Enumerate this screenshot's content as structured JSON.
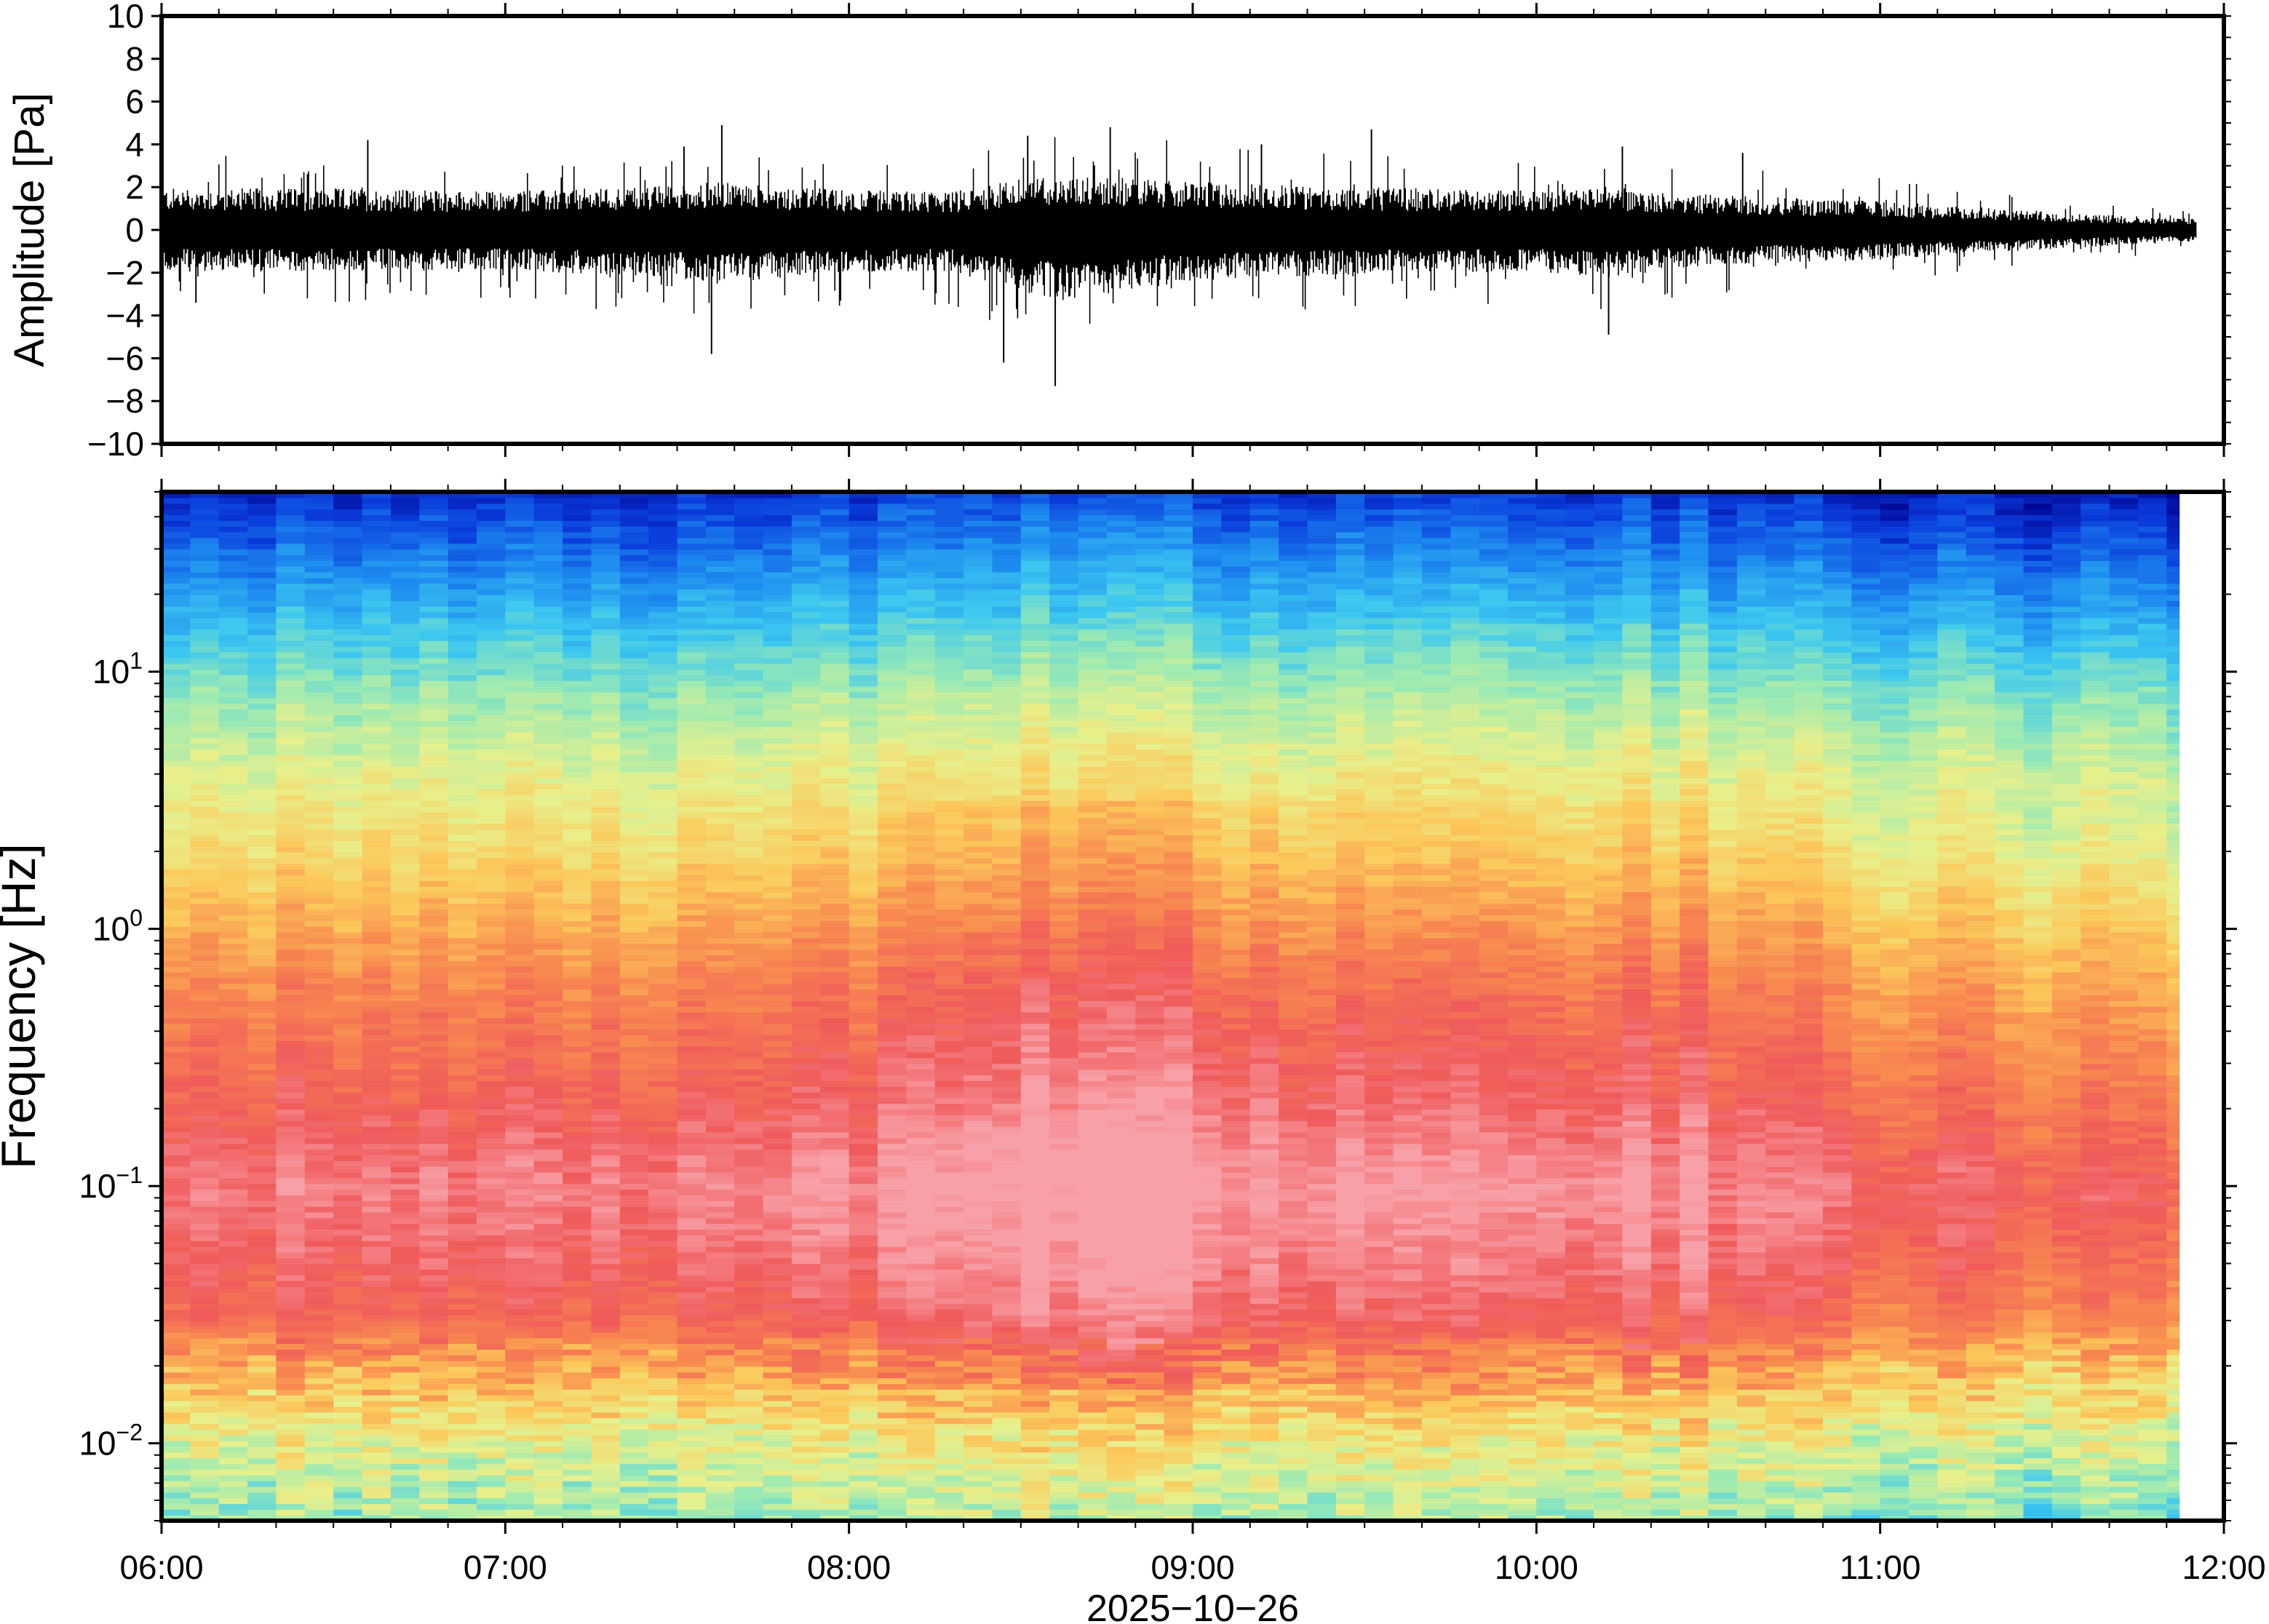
{
  "chart_data": [
    {
      "type": "line",
      "ylabel": "Amplitude [Pa]",
      "ylim": [
        -10,
        10
      ],
      "yticks": [
        -10,
        -8,
        -6,
        -4,
        -2,
        0,
        2,
        4,
        6,
        8,
        10
      ],
      "ytick_labels": [
        "−10",
        "−8",
        "−6",
        "−4",
        "−2",
        "0",
        "2",
        "4",
        "6",
        "8",
        "10"
      ],
      "x_range_hours": [
        6,
        12
      ],
      "data_end_hour": 11.92,
      "envelope": {
        "x_hours": [
          6.0,
          6.5,
          7.0,
          7.5,
          7.6,
          8.0,
          8.3,
          8.5,
          8.6,
          8.8,
          9.0,
          9.3,
          9.6,
          10.0,
          10.2,
          10.5,
          11.0,
          11.3,
          11.6,
          11.92
        ],
        "upper_pa": [
          2.6,
          2.6,
          2.4,
          2.8,
          3.0,
          2.5,
          2.4,
          3.2,
          3.4,
          3.3,
          3.0,
          2.8,
          2.6,
          2.5,
          2.6,
          2.2,
          1.8,
          1.4,
          1.0,
          0.7
        ],
        "lower_pa": [
          -2.6,
          -2.6,
          -2.5,
          -3.0,
          -3.4,
          -2.6,
          -2.6,
          -3.8,
          -4.5,
          -3.8,
          -3.2,
          -2.9,
          -2.7,
          -2.6,
          -3.0,
          -2.2,
          -1.9,
          -1.4,
          -1.1,
          -0.7
        ]
      },
      "peaks": [
        {
          "hour": 7.52,
          "pa": 3.9
        },
        {
          "hour": 7.63,
          "pa": 4.9
        },
        {
          "hour": 7.6,
          "pa": -5.8
        },
        {
          "hour": 8.52,
          "pa": 4.4
        },
        {
          "hour": 8.6,
          "pa": -7.3
        },
        {
          "hour": 8.76,
          "pa": 4.8
        },
        {
          "hour": 8.45,
          "pa": -6.2
        },
        {
          "hour": 9.52,
          "pa": 4.7
        },
        {
          "hour": 10.21,
          "pa": -4.9
        },
        {
          "hour": 10.25,
          "pa": 3.9
        },
        {
          "hour": 10.6,
          "pa": 3.6
        },
        {
          "hour": 6.6,
          "pa": 4.2
        },
        {
          "hour": 9.2,
          "pa": 4.0
        },
        {
          "hour": 6.1,
          "pa": -3.4
        }
      ]
    },
    {
      "type": "heatmap",
      "ylabel": "Frequency [Hz]",
      "yscale": "log",
      "ylim": [
        0.005,
        50
      ],
      "yticks": [
        0.01,
        0.1,
        1,
        10
      ],
      "ytick_labels": [
        {
          "base": "10",
          "exp": "−2"
        },
        {
          "base": "10",
          "exp": "−1"
        },
        {
          "base": "10",
          "exp": "0"
        },
        {
          "base": "10",
          "exp": "1"
        }
      ],
      "colormap": [
        "#00008c",
        "#0a3cdc",
        "#1e8cf0",
        "#3cc8f0",
        "#9aeab4",
        "#e8f08c",
        "#fcc85a",
        "#f88a50",
        "#f05a5a",
        "#f8a0a8"
      ],
      "column_minutes": 5,
      "data_end_hour": 11.87,
      "profile": {
        "log10_freq": [
          -2.3,
          -2.0,
          -1.75,
          -1.5,
          -1.2,
          -1.0,
          -0.7,
          -0.4,
          -0.2,
          0.0,
          0.3,
          0.6,
          0.9,
          1.1,
          1.4,
          1.7
        ],
        "level_0_to_1": [
          0.45,
          0.55,
          0.7,
          0.86,
          0.92,
          0.95,
          0.88,
          0.82,
          0.78,
          0.72,
          0.62,
          0.55,
          0.45,
          0.36,
          0.22,
          0.08
        ]
      },
      "activity_by_hour": {
        "hours": [
          6.0,
          6.5,
          7.0,
          7.5,
          8.0,
          8.4,
          8.7,
          9.0,
          9.5,
          10.0,
          10.3,
          10.6,
          11.0,
          11.5,
          11.87
        ],
        "shift": [
          0.0,
          0.0,
          0.0,
          0.02,
          0.02,
          0.08,
          0.1,
          0.08,
          0.04,
          0.02,
          0.05,
          0.03,
          -0.03,
          -0.06,
          -0.07
        ]
      }
    }
  ],
  "x_axis": {
    "ticks": [
      "06:00",
      "07:00",
      "08:00",
      "09:00",
      "10:00",
      "11:00",
      "12:00"
    ],
    "tick_hours": [
      6,
      7,
      8,
      9,
      10,
      11,
      12
    ],
    "date_label": "2025−10−26"
  }
}
